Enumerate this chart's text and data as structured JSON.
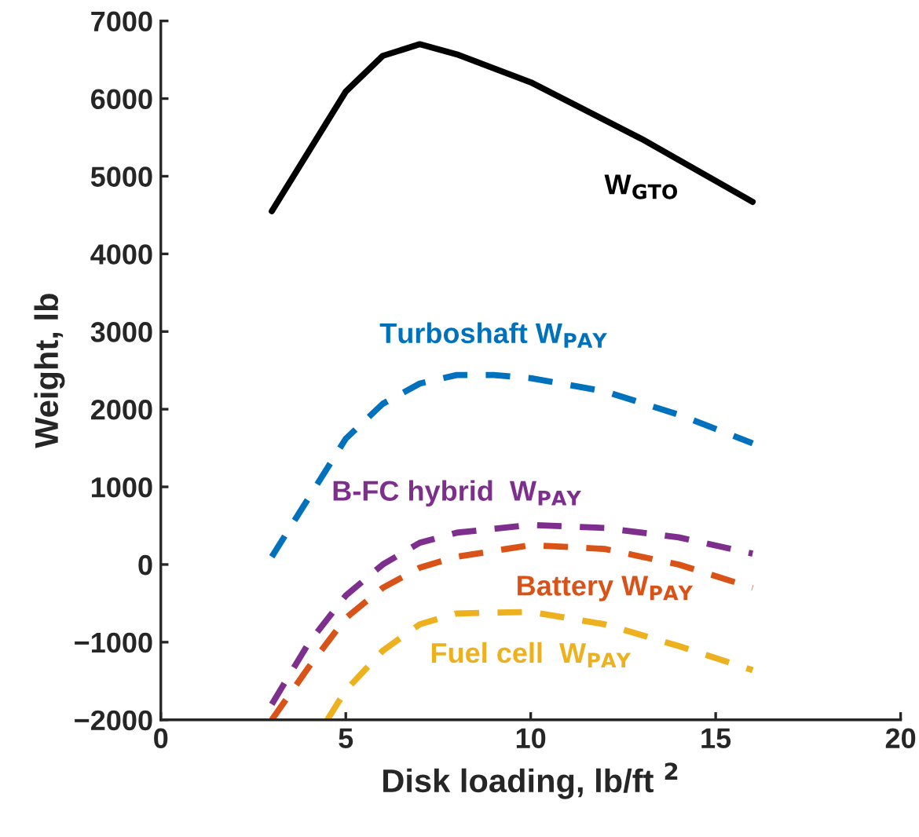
{
  "chart_data": {
    "type": "line",
    "xlabel": "Disk loading, lb/ft $^{2}$",
    "ylabel": "Weight, lb",
    "xlim": [
      0,
      20
    ],
    "xticks": [
      0,
      5,
      10,
      15,
      20
    ],
    "ylim": [
      -2000,
      7000
    ],
    "yticks": [
      {
        "value": -2000,
        "label": "−2000"
      },
      {
        "value": -1000,
        "label": "−1000"
      },
      0,
      1000,
      2000,
      3000,
      4000,
      5000,
      6000,
      7000
    ],
    "grid": false,
    "legend": false,
    "series": [
      {
        "name": "W$_{GTO}$",
        "color": "#000000",
        "line_style": "solid",
        "x": [
          3,
          5,
          6,
          7,
          8,
          10,
          13,
          16
        ],
        "values": [
          4550,
          6090,
          6550,
          6700,
          6570,
          6210,
          5480,
          4670
        ]
      },
      {
        "name": "Turboshaft W$_{PAY}$",
        "color": "#0072bd",
        "line_style": "dashed",
        "x": [
          3,
          5,
          6,
          7,
          8,
          9,
          10,
          12,
          14,
          16
        ],
        "values": [
          100,
          1620,
          2070,
          2330,
          2440,
          2440,
          2400,
          2230,
          1930,
          1560
        ]
      },
      {
        "name": "B-FC hybrid  W$_{PAY}$",
        "color": "#7e2f8e",
        "line_style": "dashed",
        "x": [
          3,
          4,
          5,
          6,
          7,
          8,
          10,
          12,
          14,
          16
        ],
        "values": [
          -1800,
          -1010,
          -400,
          0,
          280,
          410,
          510,
          470,
          350,
          140
        ]
      },
      {
        "name": "Battery W$_{PAY}$",
        "color": "#d95319",
        "line_style": "dashed",
        "x": [
          3,
          4,
          5,
          6,
          7,
          8,
          10,
          12,
          14,
          16
        ],
        "values": [
          -2000,
          -1320,
          -690,
          -300,
          -40,
          100,
          250,
          200,
          0,
          -300
        ]
      },
      {
        "name": "Fuel cell  W$_{PAY}$",
        "color": "#edb120",
        "line_style": "dashed",
        "x": [
          4.5,
          5,
          6,
          7,
          8,
          10,
          12,
          14,
          16
        ],
        "values": [
          -2000,
          -1620,
          -1110,
          -770,
          -630,
          -610,
          -770,
          -1050,
          -1360
        ]
      }
    ]
  }
}
